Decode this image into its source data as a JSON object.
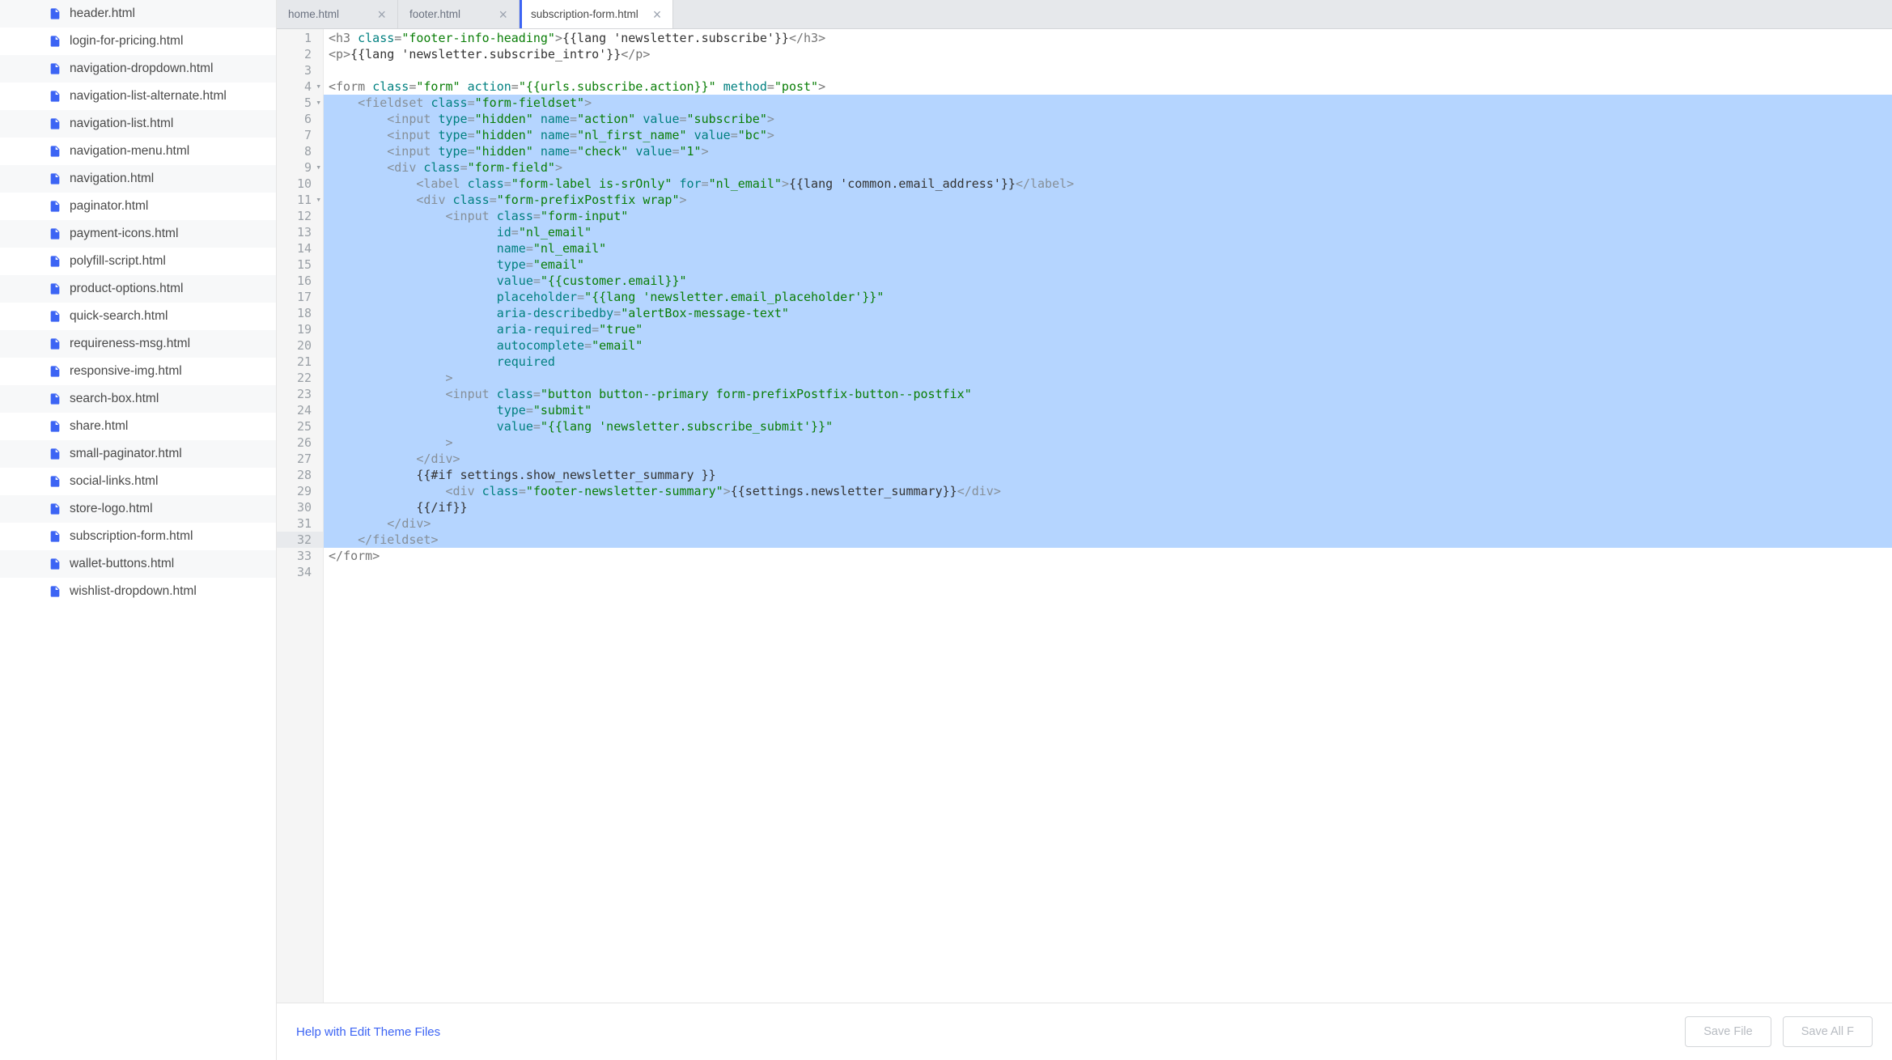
{
  "sidebar": {
    "files": [
      "header.html",
      "login-for-pricing.html",
      "navigation-dropdown.html",
      "navigation-list-alternate.html",
      "navigation-list.html",
      "navigation-menu.html",
      "navigation.html",
      "paginator.html",
      "payment-icons.html",
      "polyfill-script.html",
      "product-options.html",
      "quick-search.html",
      "requireness-msg.html",
      "responsive-img.html",
      "search-box.html",
      "share.html",
      "small-paginator.html",
      "social-links.html",
      "store-logo.html",
      "subscription-form.html",
      "wallet-buttons.html",
      "wishlist-dropdown.html"
    ]
  },
  "tabs": [
    {
      "label": "home.html",
      "active": false
    },
    {
      "label": "footer.html",
      "active": false
    },
    {
      "label": "subscription-form.html",
      "active": true
    }
  ],
  "editor": {
    "active_line": 32,
    "lines": [
      {
        "n": 1,
        "fold": "",
        "sel": false,
        "tokens": [
          [
            "<",
            "g"
          ],
          [
            "h3",
            "g"
          ],
          [
            " ",
            "t"
          ],
          [
            "class",
            "a"
          ],
          [
            "=",
            "g"
          ],
          [
            "\"footer-info-heading\"",
            "s"
          ],
          [
            ">",
            "g"
          ],
          [
            "{{lang 'newsletter.subscribe'}}",
            "t"
          ],
          [
            "</",
            "g"
          ],
          [
            "h3",
            "g"
          ],
          [
            ">",
            "g"
          ]
        ]
      },
      {
        "n": 2,
        "fold": "",
        "sel": false,
        "tokens": [
          [
            "<",
            "g"
          ],
          [
            "p",
            "g"
          ],
          [
            ">",
            "g"
          ],
          [
            "{{lang 'newsletter.subscribe_intro'}}",
            "t"
          ],
          [
            "</",
            "g"
          ],
          [
            "p",
            "g"
          ],
          [
            ">",
            "g"
          ]
        ]
      },
      {
        "n": 3,
        "fold": "",
        "sel": false,
        "tokens": []
      },
      {
        "n": 4,
        "fold": "▾",
        "sel": false,
        "tokens": [
          [
            "<",
            "g"
          ],
          [
            "form",
            "g"
          ],
          [
            " ",
            "t"
          ],
          [
            "class",
            "a"
          ],
          [
            "=",
            "g"
          ],
          [
            "\"form\"",
            "s"
          ],
          [
            " ",
            "t"
          ],
          [
            "action",
            "a"
          ],
          [
            "=",
            "g"
          ],
          [
            "\"{{urls.subscribe.action}}\"",
            "s"
          ],
          [
            " ",
            "t"
          ],
          [
            "method",
            "a"
          ],
          [
            "=",
            "g"
          ],
          [
            "\"post\"",
            "s"
          ],
          [
            ">",
            "g"
          ]
        ]
      },
      {
        "n": 5,
        "fold": "▾",
        "sel": true,
        "tokens": [
          [
            "    ",
            "t"
          ],
          [
            "<",
            "g"
          ],
          [
            "fieldset",
            "g"
          ],
          [
            " ",
            "t"
          ],
          [
            "class",
            "a"
          ],
          [
            "=",
            "g"
          ],
          [
            "\"form-fieldset\"",
            "s"
          ],
          [
            ">",
            "g"
          ]
        ]
      },
      {
        "n": 6,
        "fold": "",
        "sel": true,
        "tokens": [
          [
            "        ",
            "t"
          ],
          [
            "<",
            "g"
          ],
          [
            "input",
            "g"
          ],
          [
            " ",
            "t"
          ],
          [
            "type",
            "a"
          ],
          [
            "=",
            "g"
          ],
          [
            "\"hidden\"",
            "s"
          ],
          [
            " ",
            "t"
          ],
          [
            "name",
            "a"
          ],
          [
            "=",
            "g"
          ],
          [
            "\"action\"",
            "s"
          ],
          [
            " ",
            "t"
          ],
          [
            "value",
            "a"
          ],
          [
            "=",
            "g"
          ],
          [
            "\"subscribe\"",
            "s"
          ],
          [
            ">",
            "g"
          ]
        ]
      },
      {
        "n": 7,
        "fold": "",
        "sel": true,
        "tokens": [
          [
            "        ",
            "t"
          ],
          [
            "<",
            "g"
          ],
          [
            "input",
            "g"
          ],
          [
            " ",
            "t"
          ],
          [
            "type",
            "a"
          ],
          [
            "=",
            "g"
          ],
          [
            "\"hidden\"",
            "s"
          ],
          [
            " ",
            "t"
          ],
          [
            "name",
            "a"
          ],
          [
            "=",
            "g"
          ],
          [
            "\"nl_first_name\"",
            "s"
          ],
          [
            " ",
            "t"
          ],
          [
            "value",
            "a"
          ],
          [
            "=",
            "g"
          ],
          [
            "\"bc\"",
            "s"
          ],
          [
            ">",
            "g"
          ]
        ]
      },
      {
        "n": 8,
        "fold": "",
        "sel": true,
        "tokens": [
          [
            "        ",
            "t"
          ],
          [
            "<",
            "g"
          ],
          [
            "input",
            "g"
          ],
          [
            " ",
            "t"
          ],
          [
            "type",
            "a"
          ],
          [
            "=",
            "g"
          ],
          [
            "\"hidden\"",
            "s"
          ],
          [
            " ",
            "t"
          ],
          [
            "name",
            "a"
          ],
          [
            "=",
            "g"
          ],
          [
            "\"check\"",
            "s"
          ],
          [
            " ",
            "t"
          ],
          [
            "value",
            "a"
          ],
          [
            "=",
            "g"
          ],
          [
            "\"1\"",
            "s"
          ],
          [
            ">",
            "g"
          ]
        ]
      },
      {
        "n": 9,
        "fold": "▾",
        "sel": true,
        "tokens": [
          [
            "        ",
            "t"
          ],
          [
            "<",
            "g"
          ],
          [
            "div",
            "g"
          ],
          [
            " ",
            "t"
          ],
          [
            "class",
            "a"
          ],
          [
            "=",
            "g"
          ],
          [
            "\"form-field\"",
            "s"
          ],
          [
            ">",
            "g"
          ]
        ]
      },
      {
        "n": 10,
        "fold": "",
        "sel": true,
        "tokens": [
          [
            "            ",
            "t"
          ],
          [
            "<",
            "g"
          ],
          [
            "label",
            "g"
          ],
          [
            " ",
            "t"
          ],
          [
            "class",
            "a"
          ],
          [
            "=",
            "g"
          ],
          [
            "\"form-label is-srOnly\"",
            "s"
          ],
          [
            " ",
            "t"
          ],
          [
            "for",
            "a"
          ],
          [
            "=",
            "g"
          ],
          [
            "\"nl_email\"",
            "s"
          ],
          [
            ">",
            "g"
          ],
          [
            "{{lang 'common.email_address'}}",
            "t"
          ],
          [
            "</",
            "g"
          ],
          [
            "label",
            "g"
          ],
          [
            ">",
            "g"
          ]
        ]
      },
      {
        "n": 11,
        "fold": "▾",
        "sel": true,
        "tokens": [
          [
            "            ",
            "t"
          ],
          [
            "<",
            "g"
          ],
          [
            "div",
            "g"
          ],
          [
            " ",
            "t"
          ],
          [
            "class",
            "a"
          ],
          [
            "=",
            "g"
          ],
          [
            "\"form-prefixPostfix wrap\"",
            "s"
          ],
          [
            ">",
            "g"
          ]
        ]
      },
      {
        "n": 12,
        "fold": "",
        "sel": true,
        "tokens": [
          [
            "                ",
            "t"
          ],
          [
            "<",
            "g"
          ],
          [
            "input",
            "g"
          ],
          [
            " ",
            "t"
          ],
          [
            "class",
            "a"
          ],
          [
            "=",
            "g"
          ],
          [
            "\"form-input\"",
            "s"
          ]
        ]
      },
      {
        "n": 13,
        "fold": "",
        "sel": true,
        "tokens": [
          [
            "                       ",
            "t"
          ],
          [
            "id",
            "a"
          ],
          [
            "=",
            "g"
          ],
          [
            "\"nl_email\"",
            "s"
          ]
        ]
      },
      {
        "n": 14,
        "fold": "",
        "sel": true,
        "tokens": [
          [
            "                       ",
            "t"
          ],
          [
            "name",
            "a"
          ],
          [
            "=",
            "g"
          ],
          [
            "\"nl_email\"",
            "s"
          ]
        ]
      },
      {
        "n": 15,
        "fold": "",
        "sel": true,
        "tokens": [
          [
            "                       ",
            "t"
          ],
          [
            "type",
            "a"
          ],
          [
            "=",
            "g"
          ],
          [
            "\"email\"",
            "s"
          ]
        ]
      },
      {
        "n": 16,
        "fold": "",
        "sel": true,
        "tokens": [
          [
            "                       ",
            "t"
          ],
          [
            "value",
            "a"
          ],
          [
            "=",
            "g"
          ],
          [
            "\"{{customer.email}}\"",
            "s"
          ]
        ]
      },
      {
        "n": 17,
        "fold": "",
        "sel": true,
        "tokens": [
          [
            "                       ",
            "t"
          ],
          [
            "placeholder",
            "a"
          ],
          [
            "=",
            "g"
          ],
          [
            "\"{{lang 'newsletter.email_placeholder'}}\"",
            "s"
          ]
        ]
      },
      {
        "n": 18,
        "fold": "",
        "sel": true,
        "tokens": [
          [
            "                       ",
            "t"
          ],
          [
            "aria-describedby",
            "a"
          ],
          [
            "=",
            "g"
          ],
          [
            "\"alertBox-message-text\"",
            "s"
          ]
        ]
      },
      {
        "n": 19,
        "fold": "",
        "sel": true,
        "tokens": [
          [
            "                       ",
            "t"
          ],
          [
            "aria-required",
            "a"
          ],
          [
            "=",
            "g"
          ],
          [
            "\"true\"",
            "s"
          ]
        ]
      },
      {
        "n": 20,
        "fold": "",
        "sel": true,
        "tokens": [
          [
            "                       ",
            "t"
          ],
          [
            "autocomplete",
            "a"
          ],
          [
            "=",
            "g"
          ],
          [
            "\"email\"",
            "s"
          ]
        ]
      },
      {
        "n": 21,
        "fold": "",
        "sel": true,
        "tokens": [
          [
            "                       ",
            "t"
          ],
          [
            "required",
            "a"
          ]
        ]
      },
      {
        "n": 22,
        "fold": "",
        "sel": true,
        "tokens": [
          [
            "                ",
            "t"
          ],
          [
            ">",
            "g"
          ]
        ]
      },
      {
        "n": 23,
        "fold": "",
        "sel": true,
        "tokens": [
          [
            "                ",
            "t"
          ],
          [
            "<",
            "g"
          ],
          [
            "input",
            "g"
          ],
          [
            " ",
            "t"
          ],
          [
            "class",
            "a"
          ],
          [
            "=",
            "g"
          ],
          [
            "\"button button--primary form-prefixPostfix-button--postfix\"",
            "s"
          ]
        ]
      },
      {
        "n": 24,
        "fold": "",
        "sel": true,
        "tokens": [
          [
            "                       ",
            "t"
          ],
          [
            "type",
            "a"
          ],
          [
            "=",
            "g"
          ],
          [
            "\"submit\"",
            "s"
          ]
        ]
      },
      {
        "n": 25,
        "fold": "",
        "sel": true,
        "tokens": [
          [
            "                       ",
            "t"
          ],
          [
            "value",
            "a"
          ],
          [
            "=",
            "g"
          ],
          [
            "\"{{lang 'newsletter.subscribe_submit'}}\"",
            "s"
          ]
        ]
      },
      {
        "n": 26,
        "fold": "",
        "sel": true,
        "tokens": [
          [
            "                ",
            "t"
          ],
          [
            ">",
            "g"
          ]
        ]
      },
      {
        "n": 27,
        "fold": "",
        "sel": true,
        "tokens": [
          [
            "            ",
            "t"
          ],
          [
            "</",
            "g"
          ],
          [
            "div",
            "g"
          ],
          [
            ">",
            "g"
          ]
        ]
      },
      {
        "n": 28,
        "fold": "",
        "sel": true,
        "tokens": [
          [
            "            {{#if settings.show_newsletter_summary }}",
            "t"
          ]
        ]
      },
      {
        "n": 29,
        "fold": "",
        "sel": true,
        "tokens": [
          [
            "                ",
            "t"
          ],
          [
            "<",
            "g"
          ],
          [
            "div",
            "g"
          ],
          [
            " ",
            "t"
          ],
          [
            "class",
            "a"
          ],
          [
            "=",
            "g"
          ],
          [
            "\"footer-newsletter-summary\"",
            "s"
          ],
          [
            ">",
            "g"
          ],
          [
            "{{settings.newsletter_summary}}",
            "t"
          ],
          [
            "</",
            "g"
          ],
          [
            "div",
            "g"
          ],
          [
            ">",
            "g"
          ]
        ]
      },
      {
        "n": 30,
        "fold": "",
        "sel": true,
        "tokens": [
          [
            "            {{/if}}",
            "t"
          ]
        ]
      },
      {
        "n": 31,
        "fold": "",
        "sel": true,
        "tokens": [
          [
            "        ",
            "t"
          ],
          [
            "</",
            "g"
          ],
          [
            "div",
            "g"
          ],
          [
            ">",
            "g"
          ]
        ]
      },
      {
        "n": 32,
        "fold": "",
        "sel": true,
        "tokens": [
          [
            "    ",
            "t"
          ],
          [
            "</",
            "g"
          ],
          [
            "fieldset",
            "g"
          ],
          [
            ">",
            "g"
          ]
        ]
      },
      {
        "n": 33,
        "fold": "",
        "sel": false,
        "tokens": [
          [
            "</",
            "g"
          ],
          [
            "form",
            "g"
          ],
          [
            ">",
            "g"
          ]
        ]
      },
      {
        "n": 34,
        "fold": "",
        "sel": false,
        "tokens": []
      }
    ]
  },
  "footer": {
    "help_link": "Help with Edit Theme Files",
    "save_file": "Save File",
    "save_all": "Save All F"
  },
  "colors": {
    "accent": "#3c64f4",
    "tag_gray": "#868f98",
    "attr_teal": "#008080",
    "str_green": "#0a7e07",
    "selection_bg": "#b5d5ff",
    "gutter_bg": "#f5f5f5",
    "gutter_text": "#9aa0a6",
    "tab_bg": "#e6e8eb",
    "sidebar_alt": "#f7f8f9"
  }
}
